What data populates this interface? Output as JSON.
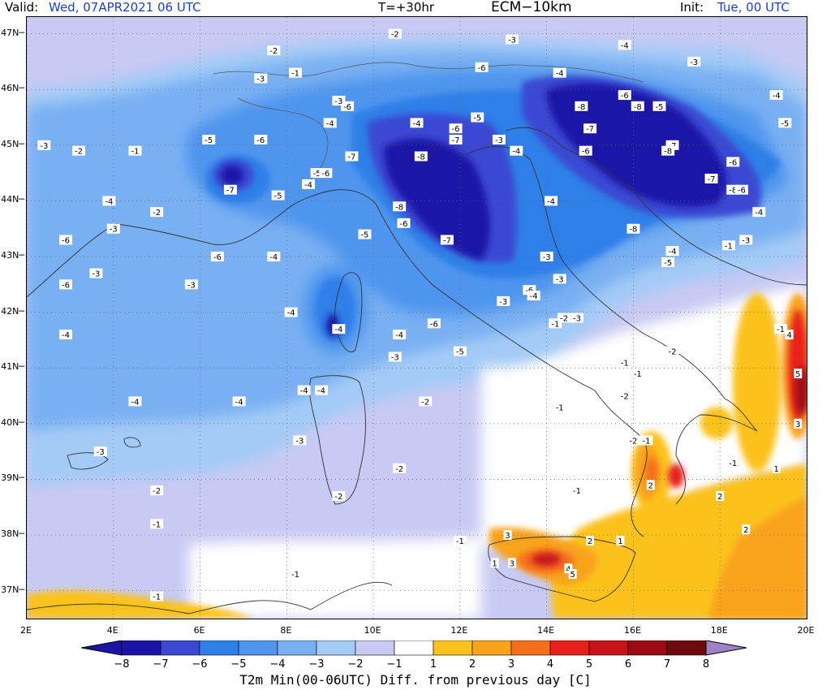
{
  "header": {
    "valid_label": "Valid:",
    "valid_value": "Wed, 07APR2021  06 UTC",
    "lead": "T=+30hr",
    "model": "ECM−10km",
    "init_label": "Init:",
    "init_value": "Tue, 00 UTC"
  },
  "axes": {
    "lat_ticks": [
      "47N",
      "46N",
      "45N",
      "44N",
      "43N",
      "42N",
      "41N",
      "40N",
      "39N",
      "38N",
      "37N"
    ],
    "lon_ticks": [
      "2E",
      "4E",
      "6E",
      "8E",
      "10E",
      "12E",
      "14E",
      "16E",
      "18E",
      "20E"
    ],
    "lon_range": [
      2,
      20
    ],
    "lat_range": [
      36.5,
      47.3
    ],
    "grid": "dotted"
  },
  "colorbar": {
    "title": "T2m Min(00-06UTC) Diff. from previous day [C]",
    "labels": [
      "−8",
      "−7",
      "−6",
      "−5",
      "−4",
      "−3",
      "−2",
      "−1",
      "1",
      "2",
      "3",
      "4",
      "5",
      "6",
      "7",
      "8"
    ],
    "colors": [
      "#1b14a6",
      "#3a48d2",
      "#2f7fe8",
      "#4f95ee",
      "#79b0f2",
      "#a3cbf6",
      "#c8caf3",
      "#ffffff",
      "#fbc21d",
      "#f9a31b",
      "#f46f1a",
      "#e8201a",
      "#c8131a",
      "#9b0c12",
      "#6c0a0e"
    ],
    "end_low": "#1b14a6",
    "end_high": "#9d83c4"
  },
  "labels": [
    {
      "t": "-2",
      "lon": 10.5,
      "lat": 47.0
    },
    {
      "t": "-3",
      "lon": 13.2,
      "lat": 46.9
    },
    {
      "t": "-4",
      "lon": 15.8,
      "lat": 46.8
    },
    {
      "t": "-3",
      "lon": 17.4,
      "lat": 46.5
    },
    {
      "t": "-2",
      "lon": 7.7,
      "lat": 46.7
    },
    {
      "t": "-1",
      "lon": 8.2,
      "lat": 46.3
    },
    {
      "t": "-3",
      "lon": 7.4,
      "lat": 46.2
    },
    {
      "t": "-6",
      "lon": 12.5,
      "lat": 46.4
    },
    {
      "t": "-4",
      "lon": 14.3,
      "lat": 46.3
    },
    {
      "t": "-8",
      "lon": 14.8,
      "lat": 45.7
    },
    {
      "t": "-6",
      "lon": 15.8,
      "lat": 45.9
    },
    {
      "t": "-8",
      "lon": 16.1,
      "lat": 45.7
    },
    {
      "t": "-5",
      "lon": 16.6,
      "lat": 45.7
    },
    {
      "t": "-4",
      "lon": 19.3,
      "lat": 45.9
    },
    {
      "t": "-5",
      "lon": 19.5,
      "lat": 45.4
    },
    {
      "t": "-6",
      "lon": 9.4,
      "lat": 45.7
    },
    {
      "t": "-3",
      "lon": 9.2,
      "lat": 45.8
    },
    {
      "t": "-5",
      "lon": 6.2,
      "lat": 45.1
    },
    {
      "t": "-6",
      "lon": 7.4,
      "lat": 45.1
    },
    {
      "t": "-3",
      "lon": 2.4,
      "lat": 45.0
    },
    {
      "t": "-2",
      "lon": 3.2,
      "lat": 44.9
    },
    {
      "t": "-1",
      "lon": 4.5,
      "lat": 44.9
    },
    {
      "t": "-4",
      "lon": 9.0,
      "lat": 45.4
    },
    {
      "t": "-4",
      "lon": 11.0,
      "lat": 45.4
    },
    {
      "t": "-5",
      "lon": 12.4,
      "lat": 45.5
    },
    {
      "t": "-6",
      "lon": 11.9,
      "lat": 45.3
    },
    {
      "t": "-7",
      "lon": 11.9,
      "lat": 45.1
    },
    {
      "t": "-3",
      "lon": 12.9,
      "lat": 45.1
    },
    {
      "t": "-4",
      "lon": 13.3,
      "lat": 44.9
    },
    {
      "t": "-7",
      "lon": 15.0,
      "lat": 45.3
    },
    {
      "t": "-6",
      "lon": 14.9,
      "lat": 44.9
    },
    {
      "t": "-7",
      "lon": 16.9,
      "lat": 45.0
    },
    {
      "t": "-8",
      "lon": 16.8,
      "lat": 44.9
    },
    {
      "t": "-6",
      "lon": 18.3,
      "lat": 44.7
    },
    {
      "t": "-7",
      "lon": 9.5,
      "lat": 44.8
    },
    {
      "t": "-8",
      "lon": 11.1,
      "lat": 44.8
    },
    {
      "t": "-7",
      "lon": 6.7,
      "lat": 44.2
    },
    {
      "t": "-5",
      "lon": 7.8,
      "lat": 44.1
    },
    {
      "t": "-5",
      "lon": 8.7,
      "lat": 44.5
    },
    {
      "t": "-6",
      "lon": 8.9,
      "lat": 44.5
    },
    {
      "t": "-4",
      "lon": 8.5,
      "lat": 44.3
    },
    {
      "t": "-7",
      "lon": 17.8,
      "lat": 44.4
    },
    {
      "t": "-8",
      "lon": 18.3,
      "lat": 44.2
    },
    {
      "t": "-6",
      "lon": 18.5,
      "lat": 44.2
    },
    {
      "t": "-4",
      "lon": 14.1,
      "lat": 44.0
    },
    {
      "t": "-4",
      "lon": 3.9,
      "lat": 44.0
    },
    {
      "t": "-2",
      "lon": 5.0,
      "lat": 43.8
    },
    {
      "t": "-3",
      "lon": 4.0,
      "lat": 43.5
    },
    {
      "t": "-6",
      "lon": 2.9,
      "lat": 43.3
    },
    {
      "t": "-8",
      "lon": 10.6,
      "lat": 43.9
    },
    {
      "t": "-6",
      "lon": 10.7,
      "lat": 43.6
    },
    {
      "t": "-5",
      "lon": 9.8,
      "lat": 43.4
    },
    {
      "t": "-7",
      "lon": 11.7,
      "lat": 43.3
    },
    {
      "t": "-8",
      "lon": 16.0,
      "lat": 43.5
    },
    {
      "t": "-4",
      "lon": 18.9,
      "lat": 43.8
    },
    {
      "t": "-3",
      "lon": 18.6,
      "lat": 43.3
    },
    {
      "t": "-1",
      "lon": 18.2,
      "lat": 43.2
    },
    {
      "t": "-4",
      "lon": 16.9,
      "lat": 43.1
    },
    {
      "t": "-5",
      "lon": 16.8,
      "lat": 42.9
    },
    {
      "t": "-6",
      "lon": 6.4,
      "lat": 43.0
    },
    {
      "t": "-4",
      "lon": 7.7,
      "lat": 43.0
    },
    {
      "t": "-3",
      "lon": 3.6,
      "lat": 42.7
    },
    {
      "t": "-3",
      "lon": 14.0,
      "lat": 43.0
    },
    {
      "t": "-3",
      "lon": 14.3,
      "lat": 42.6
    },
    {
      "t": "-6",
      "lon": 2.9,
      "lat": 42.5
    },
    {
      "t": "-3",
      "lon": 5.8,
      "lat": 42.5
    },
    {
      "t": "-6",
      "lon": 13.6,
      "lat": 42.4
    },
    {
      "t": "-4",
      "lon": 13.7,
      "lat": 42.3
    },
    {
      "t": "-3",
      "lon": 13.0,
      "lat": 42.2
    },
    {
      "t": "-4",
      "lon": 8.1,
      "lat": 42.0
    },
    {
      "t": "-6",
      "lon": 11.4,
      "lat": 41.8
    },
    {
      "t": "-4",
      "lon": 9.2,
      "lat": 41.7
    },
    {
      "t": "-4",
      "lon": 2.9,
      "lat": 41.6
    },
    {
      "t": "-4",
      "lon": 10.6,
      "lat": 41.6
    },
    {
      "t": "-1",
      "lon": 14.2,
      "lat": 41.8
    },
    {
      "t": "-3",
      "lon": 14.7,
      "lat": 41.9
    },
    {
      "t": "-2",
      "lon": 14.4,
      "lat": 41.9
    },
    {
      "t": "-5",
      "lon": 12.0,
      "lat": 41.3
    },
    {
      "t": "-3",
      "lon": 10.5,
      "lat": 41.2
    },
    {
      "t": "-1",
      "lon": 19.4,
      "lat": 41.7
    },
    {
      "t": "-2",
      "lon": 16.9,
      "lat": 41.3
    },
    {
      "t": "-1",
      "lon": 15.8,
      "lat": 41.1
    },
    {
      "t": "-1",
      "lon": 16.1,
      "lat": 40.9
    },
    {
      "t": "-2",
      "lon": 15.8,
      "lat": 40.5
    },
    {
      "t": "-1",
      "lon": 14.3,
      "lat": 40.3
    },
    {
      "t": "-4",
      "lon": 8.4,
      "lat": 40.6
    },
    {
      "t": "-4",
      "lon": 8.8,
      "lat": 40.6
    },
    {
      "t": "-4",
      "lon": 4.5,
      "lat": 40.4
    },
    {
      "t": "-4",
      "lon": 6.9,
      "lat": 40.4
    },
    {
      "t": "-2",
      "lon": 11.2,
      "lat": 40.4
    },
    {
      "t": "-3",
      "lon": 8.3,
      "lat": 39.7
    },
    {
      "t": "-2",
      "lon": 16.0,
      "lat": 39.7
    },
    {
      "t": "-1",
      "lon": 16.3,
      "lat": 39.7
    },
    {
      "t": "-3",
      "lon": 3.7,
      "lat": 39.5
    },
    {
      "t": "-2",
      "lon": 10.6,
      "lat": 39.2
    },
    {
      "t": "-1",
      "lon": 18.3,
      "lat": 39.3
    },
    {
      "t": "-2",
      "lon": 5.0,
      "lat": 38.8
    },
    {
      "t": "-2",
      "lon": 9.2,
      "lat": 38.7
    },
    {
      "t": "-1",
      "lon": 14.7,
      "lat": 38.8
    },
    {
      "t": "-1",
      "lon": 5.0,
      "lat": 38.2
    },
    {
      "t": "-1",
      "lon": 12.0,
      "lat": 37.9
    },
    {
      "t": "-1",
      "lon": 8.2,
      "lat": 37.3
    },
    {
      "t": "-1",
      "lon": 5.0,
      "lat": 36.9
    },
    {
      "t": "4",
      "lon": 19.6,
      "lat": 41.6
    },
    {
      "t": "5",
      "lon": 19.8,
      "lat": 40.9
    },
    {
      "t": "3",
      "lon": 19.8,
      "lat": 40.0
    },
    {
      "t": "1",
      "lon": 19.3,
      "lat": 39.2
    },
    {
      "t": "2",
      "lon": 16.4,
      "lat": 38.9
    },
    {
      "t": "2",
      "lon": 18.0,
      "lat": 38.7
    },
    {
      "t": "2",
      "lon": 18.6,
      "lat": 38.1
    },
    {
      "t": "2",
      "lon": 15.0,
      "lat": 37.9
    },
    {
      "t": "1",
      "lon": 15.7,
      "lat": 37.9
    },
    {
      "t": "3",
      "lon": 13.2,
      "lat": 37.5
    },
    {
      "t": "1",
      "lon": 12.8,
      "lat": 37.5
    },
    {
      "t": "3",
      "lon": 13.1,
      "lat": 38.0
    },
    {
      "t": "4",
      "lon": 14.5,
      "lat": 37.4
    },
    {
      "t": "5",
      "lon": 14.6,
      "lat": 37.3
    }
  ]
}
